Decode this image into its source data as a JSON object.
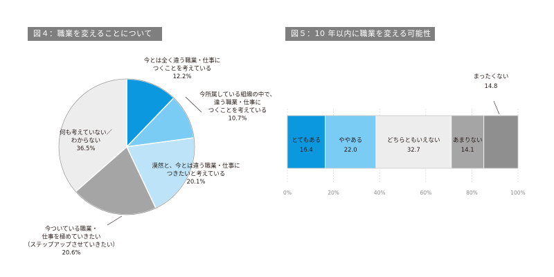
{
  "chart_data": [
    {
      "type": "pie",
      "title": "図４：職業を変えることについて",
      "slices": [
        {
          "label_lines": [
            "今とは全く違う職業・仕事に",
            "つくことを考えている"
          ],
          "value": 12.2,
          "value_text": "12.2%",
          "color": "#0b98df"
        },
        {
          "label_lines": [
            "今所属している組織の中で、",
            "違う職業・仕事に",
            "つくことを考えている"
          ],
          "value": 10.7,
          "value_text": "10.7%",
          "color": "#7bccf5"
        },
        {
          "label_lines": [
            "漠然と、今とは違う職業・仕事に",
            "つきたいと考えている"
          ],
          "value": 20.1,
          "value_text": "20.1%",
          "color": "#bce3f8"
        },
        {
          "label_lines": [
            "今ついている職業・",
            "仕事を極めていきたい",
            "（ステップアップさせていきたい）"
          ],
          "value": 20.6,
          "value_text": "20.6%",
          "color": "#a5a5a5"
        },
        {
          "label_lines": [
            "何も考えていない／",
            "わからない"
          ],
          "value": 36.5,
          "value_text": "36.5%",
          "color": "#ededed"
        }
      ]
    },
    {
      "type": "stacked_bar",
      "title": "図５：10 年以内に職業を変える可能性",
      "segments": [
        {
          "label": "とてもある",
          "value": 16.4,
          "value_text": "16.4",
          "color": "#0b98df"
        },
        {
          "label": "ややある",
          "value": 22.0,
          "value_text": "22.0",
          "color": "#7bccf5"
        },
        {
          "label": "どちらともいえない",
          "value": 32.7,
          "value_text": "32.7",
          "color": "#ededed"
        },
        {
          "label": "あまりない",
          "value": 14.1,
          "value_text": "14.1",
          "color": "#a5a5a5"
        },
        {
          "label": "まったくない",
          "value": 14.8,
          "value_text": "14.8",
          "color": "#8f8f8f"
        }
      ],
      "xlim": [
        0,
        100
      ],
      "ticks": [
        "0%",
        "20%",
        "40%",
        "60%",
        "80%",
        "100%"
      ]
    }
  ]
}
